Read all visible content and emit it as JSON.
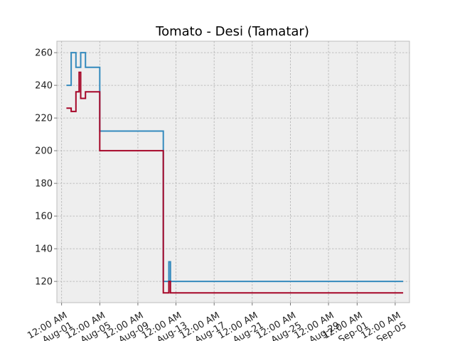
{
  "chart_data": {
    "type": "line",
    "step": true,
    "title": "Tomato - Desi (Tamatar)",
    "xlabel": "",
    "ylabel": "",
    "xlim": [
      "2023-07-31T12:00",
      "2023-09-06T12:00"
    ],
    "ylim": [
      107,
      267
    ],
    "grid": true,
    "y_ticks": [
      "120",
      "140",
      "160",
      "180",
      "200",
      "220",
      "240",
      "260"
    ],
    "x_ticks": [
      {
        "date": "2023-08-01T00:00",
        "line1": "12:00 AM",
        "line2": "Aug-01"
      },
      {
        "date": "2023-08-05T00:00",
        "line1": "12:00 AM",
        "line2": "Aug-05"
      },
      {
        "date": "2023-08-09T00:00",
        "line1": "12:00 AM",
        "line2": "Aug-09"
      },
      {
        "date": "2023-08-13T00:00",
        "line1": "12:00 AM",
        "line2": "Aug-13"
      },
      {
        "date": "2023-08-17T00:00",
        "line1": "12:00 AM",
        "line2": "Aug-17"
      },
      {
        "date": "2023-08-21T00:00",
        "line1": "12:00 AM",
        "line2": "Aug-21"
      },
      {
        "date": "2023-08-25T00:00",
        "line1": "12:00 AM",
        "line2": "Aug-25"
      },
      {
        "date": "2023-08-29T00:00",
        "line1": "12:00 AM",
        "line2": "Aug-29"
      },
      {
        "date": "2023-09-01T00:00",
        "line1": "12:00 AM",
        "line2": "Sep-01"
      },
      {
        "date": "2023-09-05T00:00",
        "line1": "12:00 AM",
        "line2": "Sep-05"
      }
    ],
    "series": [
      {
        "color": "#348abd",
        "points": [
          [
            "2023-08-01T12:00",
            240
          ],
          [
            "2023-08-02T00:00",
            260
          ],
          [
            "2023-08-02T12:00",
            251
          ],
          [
            "2023-08-03T00:00",
            260
          ],
          [
            "2023-08-03T12:00",
            251
          ],
          [
            "2023-08-05T00:00",
            212
          ],
          [
            "2023-08-11T16:00",
            120
          ],
          [
            "2023-08-12T06:00",
            132
          ],
          [
            "2023-08-12T10:00",
            120
          ],
          [
            "2023-09-05T20:00",
            120
          ]
        ]
      },
      {
        "color": "#a60628",
        "points": [
          [
            "2023-08-01T12:00",
            226
          ],
          [
            "2023-08-02T00:00",
            224
          ],
          [
            "2023-08-02T12:00",
            236
          ],
          [
            "2023-08-02T20:00",
            248
          ],
          [
            "2023-08-03T00:00",
            232
          ],
          [
            "2023-08-03T12:00",
            236
          ],
          [
            "2023-08-05T00:00",
            200
          ],
          [
            "2023-08-11T16:00",
            113
          ],
          [
            "2023-08-12T06:00",
            120
          ],
          [
            "2023-08-12T10:00",
            113
          ],
          [
            "2023-09-05T20:00",
            113
          ]
        ]
      }
    ]
  }
}
